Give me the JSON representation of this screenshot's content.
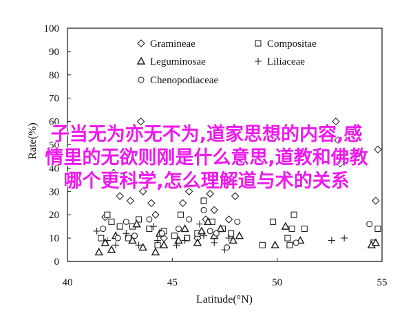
{
  "chart_data": {
    "type": "scatter",
    "xlabel": "Latitude(°N)",
    "ylabel": "Rate(%)",
    "xlim": [
      40,
      55
    ],
    "ylim": [
      0,
      100
    ],
    "xticks": [
      "40",
      "45",
      "50",
      "55"
    ],
    "yticks": [
      "0",
      "10",
      "20",
      "30",
      "40",
      "50",
      "60",
      "70",
      "80",
      "90",
      "100"
    ],
    "legend_position": "top-right",
    "series": [
      {
        "name": "Gramineae",
        "marker": "diamond",
        "points": [
          [
            41.8,
            19
          ],
          [
            42.2,
            38
          ],
          [
            42.5,
            28
          ],
          [
            43,
            26
          ],
          [
            43.5,
            60
          ],
          [
            43.6,
            30
          ],
          [
            44,
            25
          ],
          [
            44.2,
            20
          ],
          [
            44.6,
            10
          ],
          [
            45.5,
            25
          ],
          [
            45.8,
            30
          ],
          [
            46.2,
            10
          ],
          [
            46.6,
            18
          ],
          [
            46.8,
            29
          ],
          [
            47,
            22
          ],
          [
            47.7,
            18
          ],
          [
            48,
            28
          ],
          [
            52.8,
            60
          ],
          [
            52.9,
            52
          ],
          [
            53,
            42
          ],
          [
            54.7,
            26
          ],
          [
            54.8,
            48
          ]
        ]
      },
      {
        "name": "Compositae",
        "marker": "square",
        "points": [
          [
            41.6,
            10
          ],
          [
            41.9,
            20
          ],
          [
            42.1,
            17
          ],
          [
            42.5,
            15
          ],
          [
            42.9,
            10
          ],
          [
            43.1,
            15
          ],
          [
            43.4,
            18
          ],
          [
            43.9,
            14
          ],
          [
            44.3,
            7
          ],
          [
            44.6,
            13
          ],
          [
            45.1,
            11
          ],
          [
            45.4,
            20
          ],
          [
            45.7,
            10
          ],
          [
            46.2,
            12
          ],
          [
            46.5,
            26
          ],
          [
            46.9,
            17
          ],
          [
            47.4,
            14
          ],
          [
            47.8,
            12
          ],
          [
            49.3,
            7
          ],
          [
            49.8,
            17
          ],
          [
            50.5,
            10
          ],
          [
            50.6,
            7
          ],
          [
            50.7,
            14
          ],
          [
            50.8,
            20
          ],
          [
            51.3,
            14
          ],
          [
            54.6,
            8
          ],
          [
            54.8,
            14
          ]
        ]
      },
      {
        "name": "Leguminosae",
        "marker": "triangle",
        "points": [
          [
            41.5,
            4
          ],
          [
            41.8,
            8
          ],
          [
            42.1,
            5
          ],
          [
            42.3,
            11
          ],
          [
            43.1,
            9
          ],
          [
            43.3,
            16
          ],
          [
            43.6,
            6
          ],
          [
            44.2,
            4
          ],
          [
            44.4,
            12
          ],
          [
            44.6,
            7
          ],
          [
            45.3,
            9
          ],
          [
            45.6,
            14
          ],
          [
            46.2,
            8
          ],
          [
            46.4,
            13
          ],
          [
            46.7,
            17
          ],
          [
            47,
            11
          ],
          [
            47.3,
            14
          ],
          [
            47.9,
            9
          ],
          [
            48.2,
            11
          ],
          [
            49.9,
            7
          ],
          [
            50.4,
            15
          ],
          [
            51.1,
            9
          ],
          [
            54.5,
            7
          ],
          [
            54.7,
            8
          ]
        ]
      },
      {
        "name": "Liliaceae",
        "marker": "plus",
        "points": [
          [
            41.4,
            13
          ],
          [
            41.9,
            9
          ],
          [
            42.3,
            7
          ],
          [
            42.8,
            12
          ],
          [
            43.4,
            7
          ],
          [
            44.1,
            15
          ],
          [
            44.3,
            9
          ],
          [
            45.2,
            7
          ],
          [
            45.6,
            9
          ],
          [
            46.3,
            16
          ],
          [
            46.5,
            11
          ],
          [
            47,
            8
          ],
          [
            47.5,
            5
          ],
          [
            47.7,
            10
          ],
          [
            52.6,
            9
          ],
          [
            53.2,
            10
          ]
        ]
      },
      {
        "name": "Chenopodiaceae",
        "marker": "circle",
        "points": [
          [
            41.7,
            14
          ],
          [
            42.4,
            10
          ],
          [
            42.8,
            17
          ],
          [
            43.2,
            11
          ],
          [
            43.9,
            18
          ],
          [
            44.5,
            12
          ],
          [
            45.3,
            14
          ],
          [
            45.8,
            18
          ],
          [
            46.5,
            22
          ],
          [
            46.8,
            13
          ],
          [
            47.1,
            12
          ],
          [
            47.6,
            6
          ],
          [
            48.1,
            17
          ],
          [
            50.9,
            8
          ],
          [
            54.4,
            16
          ]
        ]
      }
    ]
  },
  "overlay_text": [
    "子当无为亦无不为,道家思想的内容,感",
    "情里的无欲则刚是什么意思,道教和佛教",
    "哪个更科学,怎么理解道与术的关系"
  ]
}
